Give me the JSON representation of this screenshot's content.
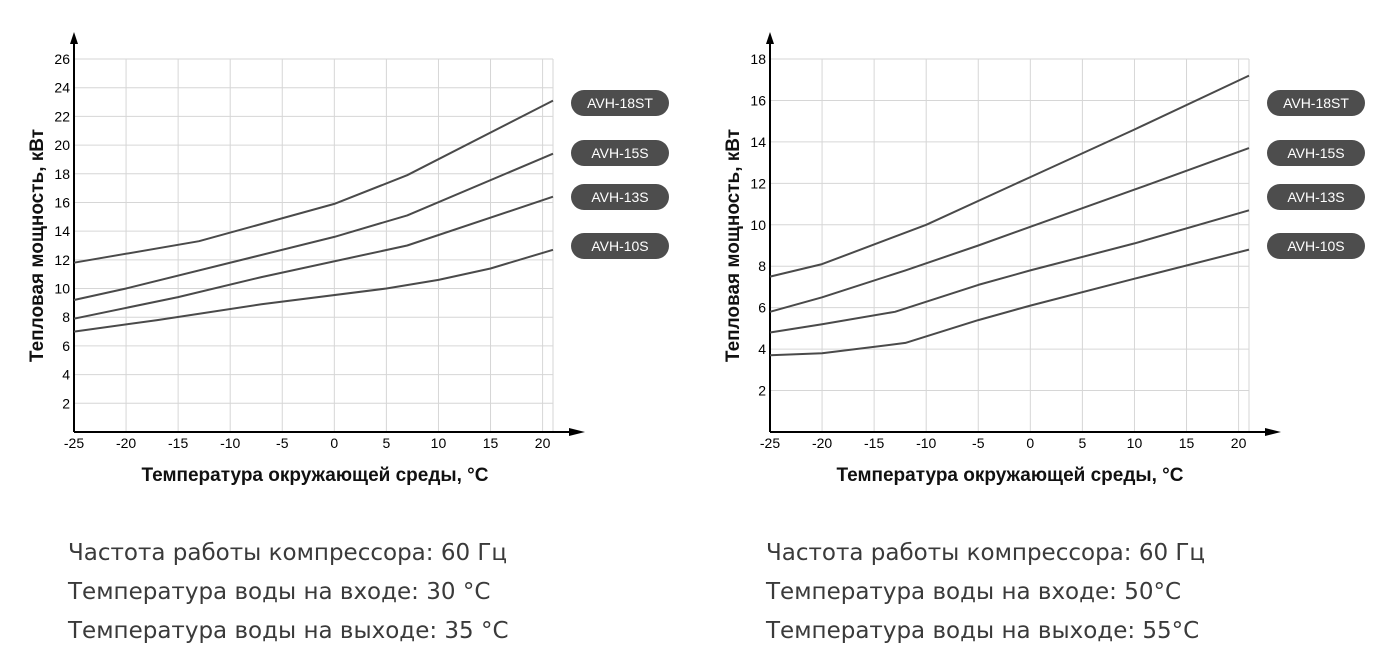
{
  "chart_data": [
    {
      "type": "line",
      "title": "",
      "xlabel": "Температура окружающей среды, °C",
      "ylabel": "Тепловая мощность, кВт",
      "xlim": [
        -25,
        21
      ],
      "ylim": [
        0,
        26
      ],
      "x_ticks": [
        -25,
        -20,
        -15,
        -10,
        -5,
        0,
        5,
        10,
        15,
        20
      ],
      "y_ticks": [
        2,
        4,
        6,
        8,
        10,
        12,
        14,
        16,
        18,
        20,
        22,
        24,
        26
      ],
      "grid": true,
      "legend_position": "right",
      "series": [
        {
          "name": "AVH-18ST",
          "x": [
            -25,
            -13,
            0,
            7,
            21
          ],
          "y": [
            11.8,
            13.3,
            15.9,
            17.9,
            23.1
          ]
        },
        {
          "name": "AVH-15S",
          "x": [
            -25,
            -20,
            0,
            7,
            21
          ],
          "y": [
            9.2,
            10.0,
            13.6,
            15.1,
            19.4
          ]
        },
        {
          "name": "AVH-13S",
          "x": [
            -25,
            -15,
            -7,
            7,
            21
          ],
          "y": [
            7.9,
            9.4,
            10.8,
            13.0,
            16.4
          ]
        },
        {
          "name": "AVH-10S",
          "x": [
            -25,
            -17,
            -7,
            5,
            10,
            15,
            21
          ],
          "y": [
            7.0,
            7.8,
            8.9,
            10.0,
            10.6,
            11.4,
            12.7
          ]
        }
      ]
    },
    {
      "type": "line",
      "title": "",
      "xlabel": "Температура окружающей среды, °C",
      "ylabel": "Тепловая мощность, кВт",
      "xlim": [
        -25,
        21
      ],
      "ylim": [
        0,
        18
      ],
      "x_ticks": [
        -25,
        -20,
        -15,
        -10,
        -5,
        0,
        5,
        10,
        15,
        20
      ],
      "y_ticks": [
        2,
        4,
        6,
        8,
        10,
        12,
        14,
        16,
        18
      ],
      "grid": true,
      "legend_position": "right",
      "series": [
        {
          "name": "AVH-18ST",
          "x": [
            -25,
            -20,
            -10,
            0,
            10,
            21
          ],
          "y": [
            7.5,
            8.1,
            10.0,
            12.3,
            14.6,
            17.2
          ]
        },
        {
          "name": "AVH-15S",
          "x": [
            -25,
            -20,
            -12,
            -5,
            0,
            10,
            21
          ],
          "y": [
            5.8,
            6.5,
            7.8,
            9.0,
            9.9,
            11.7,
            13.7
          ]
        },
        {
          "name": "AVH-13S",
          "x": [
            -25,
            -20,
            -13,
            -5,
            0,
            10,
            21
          ],
          "y": [
            4.8,
            5.2,
            5.8,
            7.1,
            7.8,
            9.1,
            10.7
          ]
        },
        {
          "name": "AVH-10S",
          "x": [
            -25,
            -20,
            -12,
            -5,
            0,
            10,
            21
          ],
          "y": [
            3.7,
            3.8,
            4.3,
            5.4,
            6.1,
            7.4,
            8.8
          ]
        }
      ]
    }
  ],
  "captions": [
    {
      "freq": "Частота работы компрессора: 60 Гц",
      "inlet": "Температура воды на входе: 30 °C",
      "outlet": "Температура воды на выходе: 35 °C"
    },
    {
      "freq": "Частота работы компрессора: 60 Гц",
      "inlet": "Температура воды на входе: 50°C",
      "outlet": "Температура воды на выходе: 55°C"
    }
  ],
  "colors": {
    "line": "#4a4a4a",
    "grid": "#d6d6d6",
    "axis": "#000000",
    "legend_bg": "#4d4d4d",
    "legend_text": "#ffffff"
  }
}
